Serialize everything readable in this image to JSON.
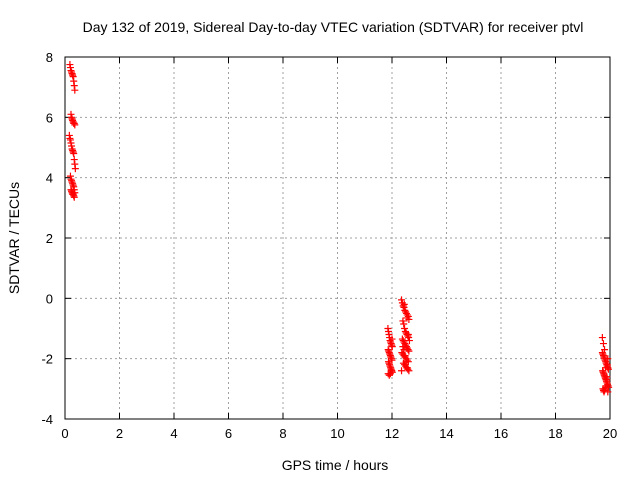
{
  "chart_data": {
    "type": "scatter",
    "title": "Day 132 of 2019, Sidereal Day-to-day VTEC variation (SDTVAR) for receiver ptvl",
    "xlabel": "GPS time / hours",
    "ylabel": "SDTVAR / TECUs",
    "xlim": [
      0,
      20
    ],
    "ylim": [
      -4,
      8
    ],
    "x_ticks": [
      "0",
      "2",
      "4",
      "6",
      "8",
      "10",
      "12",
      "14",
      "16",
      "18",
      "20"
    ],
    "y_ticks": [
      "-4",
      "-2",
      "0",
      "2",
      "4",
      "6",
      "8"
    ],
    "grid": true,
    "marker": "plus",
    "color": "#ff0000",
    "series": [
      {
        "x": [
          0.18,
          0.2,
          0.22,
          0.24,
          0.26,
          0.28,
          0.3,
          0.32,
          0.34,
          0.36,
          0.22,
          0.24,
          0.26,
          0.28,
          0.3,
          0.32,
          0.34,
          0.36,
          0.16,
          0.18,
          0.2,
          0.22,
          0.24,
          0.26,
          0.28,
          0.3,
          0.32,
          0.34,
          0.36,
          0.38,
          0.2,
          0.22,
          0.24,
          0.26,
          0.28,
          0.3,
          0.32,
          0.34,
          0.36,
          0.22,
          0.24,
          0.26,
          0.28,
          0.3,
          0.32,
          0.34
        ],
        "y": [
          7.75,
          7.65,
          7.55,
          7.5,
          7.45,
          7.4,
          7.35,
          7.2,
          7.05,
          6.9,
          6.1,
          6.0,
          5.95,
          5.9,
          5.85,
          5.8,
          5.8,
          5.75,
          5.4,
          5.3,
          5.25,
          5.15,
          5.05,
          4.95,
          4.9,
          4.85,
          4.8,
          4.6,
          4.45,
          4.3,
          4.05,
          3.95,
          3.9,
          3.85,
          3.8,
          3.75,
          3.7,
          3.6,
          3.5,
          3.6,
          3.55,
          3.5,
          3.45,
          3.45,
          3.4,
          3.35
        ]
      },
      {
        "x": [
          11.85,
          11.87,
          11.89,
          11.91,
          11.93,
          11.95,
          11.97,
          11.99,
          12.01,
          11.86,
          11.88,
          11.9,
          11.92,
          11.94,
          11.96,
          11.98,
          12.0,
          11.87,
          11.89,
          11.91,
          11.93,
          11.95,
          11.97,
          11.99,
          12.01,
          11.86,
          11.9,
          11.94,
          11.98,
          12.0
        ],
        "y": [
          -1.0,
          -1.1,
          -1.2,
          -1.3,
          -1.4,
          -1.45,
          -1.5,
          -1.55,
          -1.6,
          -1.7,
          -1.75,
          -1.8,
          -1.85,
          -1.9,
          -1.95,
          -2.0,
          -2.05,
          -2.1,
          -2.15,
          -2.2,
          -2.25,
          -2.3,
          -2.35,
          -2.4,
          -2.45,
          -2.5,
          -2.55,
          -2.5,
          -2.4,
          -1.35
        ]
      },
      {
        "x": [
          12.35,
          12.38,
          12.41,
          12.44,
          12.47,
          12.5,
          12.53,
          12.56,
          12.6,
          12.62,
          12.4,
          12.43,
          12.46,
          12.49,
          12.52,
          12.55,
          12.58,
          12.61,
          12.38,
          12.41,
          12.44,
          12.47,
          12.5,
          12.53,
          12.56,
          12.59,
          12.62,
          12.36,
          12.4,
          12.44,
          12.48,
          12.52,
          12.56,
          12.6,
          12.42,
          12.46,
          12.5,
          12.54,
          12.58,
          12.62,
          12.4,
          12.44,
          12.48,
          12.52,
          12.56,
          12.6,
          12.64,
          12.35,
          12.45,
          12.55
        ],
        "y": [
          -0.05,
          -0.15,
          -0.25,
          -0.3,
          -0.4,
          -0.45,
          -0.5,
          -0.55,
          -0.6,
          -0.7,
          -0.75,
          -0.85,
          -1.0,
          -1.1,
          -1.15,
          -1.2,
          -1.25,
          -1.3,
          -1.35,
          -1.4,
          -1.45,
          -1.5,
          -1.55,
          -1.6,
          -1.65,
          -1.7,
          -1.75,
          -1.8,
          -1.85,
          -1.9,
          -1.95,
          -2.0,
          -2.05,
          -2.1,
          -2.15,
          -2.2,
          -2.25,
          -2.3,
          -2.35,
          -2.4,
          -1.6,
          -1.7,
          -1.9,
          -2.1,
          -2.3,
          -1.2,
          -1.4,
          -2.4,
          -0.2,
          -0.65
        ]
      },
      {
        "x": [
          19.72,
          19.74,
          19.76,
          19.78,
          19.8,
          19.82,
          19.84,
          19.86,
          19.88,
          19.9,
          19.92,
          19.94,
          19.73,
          19.75,
          19.77,
          19.79,
          19.81,
          19.83,
          19.85,
          19.87,
          19.89,
          19.91,
          19.93,
          19.95,
          19.74,
          19.76,
          19.78,
          19.8,
          19.82,
          19.84,
          19.86,
          19.88,
          19.9,
          19.92,
          19.72,
          19.76,
          19.8,
          19.84,
          19.88,
          19.92
        ],
        "y": [
          -1.8,
          -1.85,
          -1.9,
          -1.95,
          -2.0,
          -2.05,
          -2.1,
          -2.15,
          -2.2,
          -2.25,
          -2.3,
          -2.35,
          -2.4,
          -2.45,
          -2.5,
          -2.55,
          -2.6,
          -2.65,
          -2.7,
          -2.75,
          -2.8,
          -2.85,
          -2.9,
          -2.95,
          -3.0,
          -3.05,
          -3.1,
          -3.05,
          -3.0,
          -2.95,
          -2.9,
          -2.6,
          -2.2,
          -2.0,
          -1.3,
          -1.5,
          -1.7,
          -2.3,
          -2.7,
          -3.1
        ]
      }
    ]
  }
}
